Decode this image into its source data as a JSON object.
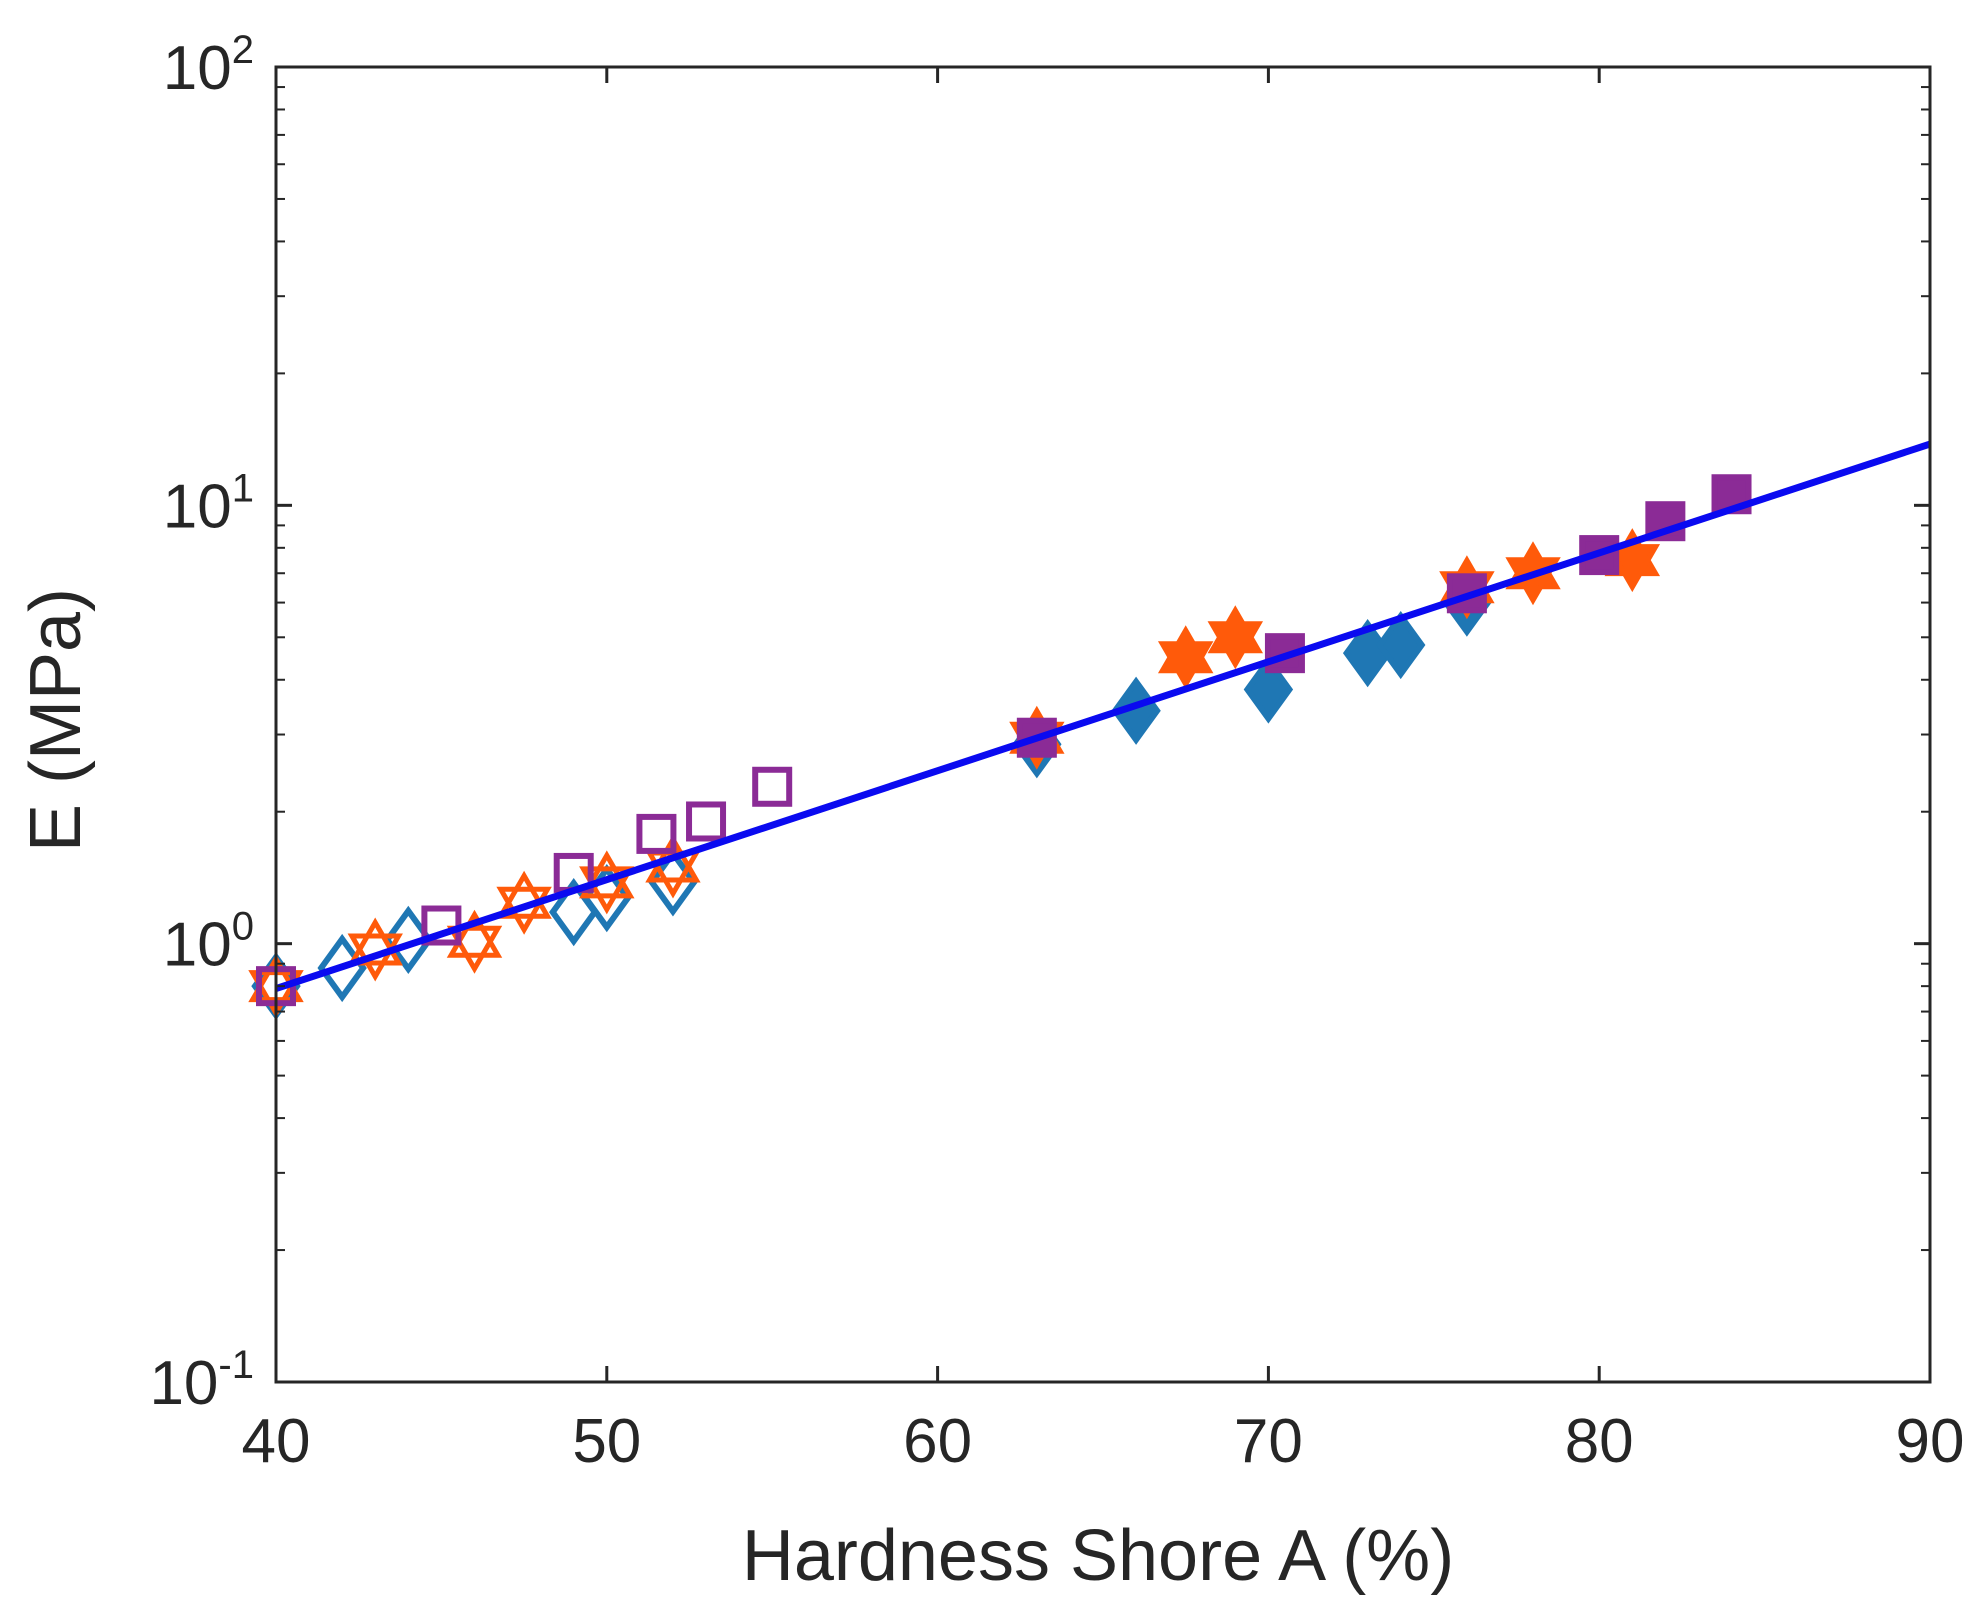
{
  "chart_data": {
    "type": "scatter",
    "title": "",
    "xlabel": "Hardness Shore A (%)",
    "ylabel": "E (MPa)",
    "xscale": "linear",
    "yscale": "log",
    "xlim": [
      40,
      90
    ],
    "ylim": [
      0.1,
      100
    ],
    "xticks": [
      40,
      50,
      60,
      70,
      80,
      90
    ],
    "xtick_labels": [
      "40",
      "50",
      "60",
      "70",
      "80",
      "90"
    ],
    "yticks": [
      {
        "value": 0.1,
        "base": "10",
        "exp": "-1"
      },
      {
        "value": 1,
        "base": "10",
        "exp": "0"
      },
      {
        "value": 10,
        "base": "10",
        "exp": "1"
      },
      {
        "value": 100,
        "base": "10",
        "exp": "2"
      }
    ],
    "grid": false,
    "legend": "none",
    "colors": {
      "blue_marker": "#1f77b4",
      "orange_marker": "#ff5a0a",
      "purple_marker": "#8b2b96",
      "fit_line": "#0a0af0",
      "axis": "#262626"
    },
    "series": [
      {
        "name": "blue-diamond-open",
        "marker": "diamond",
        "filled": false,
        "color": "#1f77b4",
        "x": [
          40,
          42,
          44,
          49,
          50,
          52
        ],
        "y": [
          0.8,
          0.88,
          1.02,
          1.18,
          1.27,
          1.38
        ]
      },
      {
        "name": "orange-star-open",
        "marker": "hexagram",
        "filled": false,
        "color": "#ff5a0a",
        "x": [
          40,
          43,
          46,
          47.5,
          50,
          52
        ],
        "y": [
          0.8,
          0.97,
          1.01,
          1.24,
          1.38,
          1.5
        ]
      },
      {
        "name": "purple-square-open",
        "marker": "square",
        "filled": false,
        "color": "#8b2b96",
        "x": [
          40,
          45,
          49,
          51.5,
          53,
          55
        ],
        "y": [
          0.8,
          1.1,
          1.45,
          1.78,
          1.9,
          2.28
        ]
      },
      {
        "name": "blue-diamond-filled",
        "marker": "diamond",
        "filled": true,
        "color": "#1f77b4",
        "x": [
          63,
          66,
          70,
          73,
          74,
          76
        ],
        "y": [
          2.85,
          3.4,
          3.8,
          4.6,
          4.8,
          6.0
        ]
      },
      {
        "name": "orange-star-filled",
        "marker": "hexagram",
        "filled": true,
        "color": "#ff5a0a",
        "x": [
          63,
          67.5,
          69,
          76,
          78,
          81
        ],
        "y": [
          2.95,
          4.5,
          5.0,
          6.5,
          7.0,
          7.5
        ]
      },
      {
        "name": "purple-square-filled",
        "marker": "square",
        "filled": true,
        "color": "#8b2b96",
        "x": [
          63,
          70.5,
          76,
          80,
          82,
          84
        ],
        "y": [
          2.95,
          4.6,
          6.3,
          7.7,
          9.2,
          10.6
        ]
      }
    ],
    "fit_line": {
      "name": "exponential-fit",
      "color": "#0a0af0",
      "x": [
        40,
        90
      ],
      "y": [
        0.79,
        13.8
      ]
    }
  }
}
